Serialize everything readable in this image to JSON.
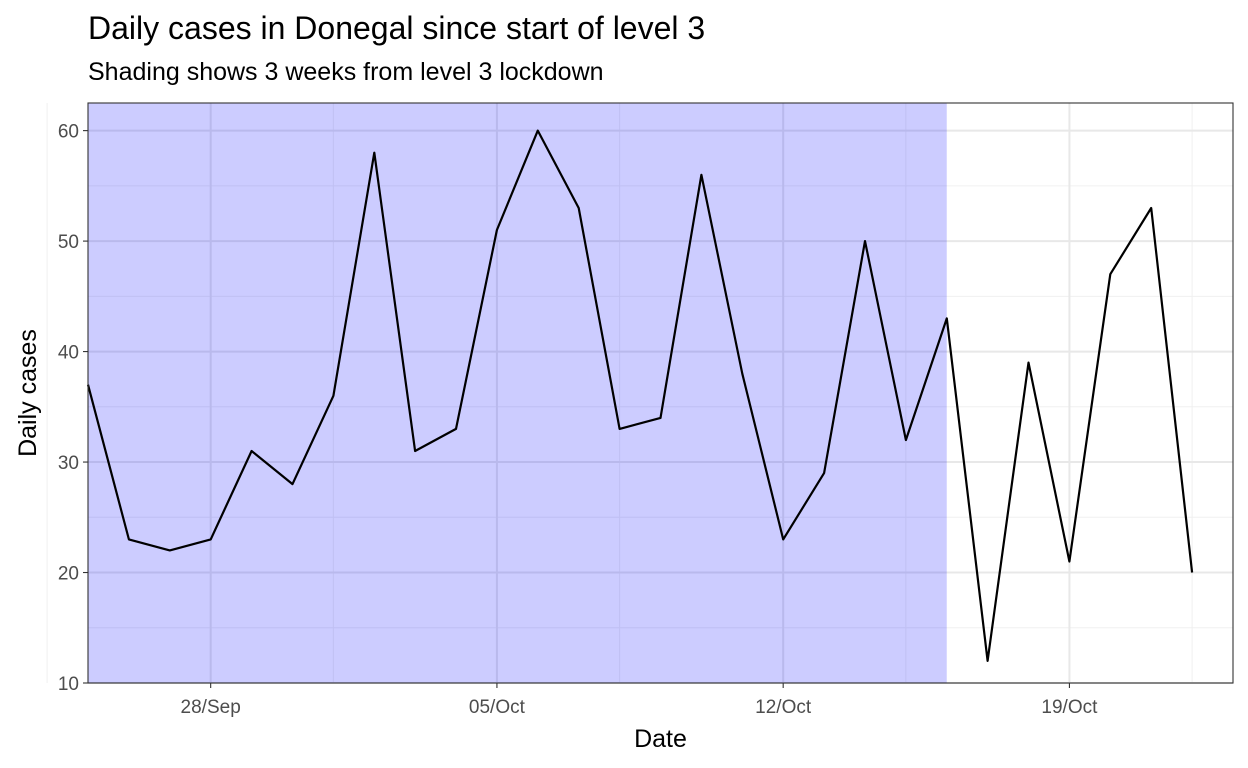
{
  "chart_data": {
    "type": "line",
    "title": "Daily cases in Donegal since start of level 3",
    "subtitle": "Shading shows 3 weeks from level 3 lockdown",
    "xlabel": "Date",
    "ylabel": "Daily cases",
    "x_type": "date",
    "xlim": [
      "2020-09-25",
      "2020-10-23"
    ],
    "ylim": [
      10,
      62.5
    ],
    "x_ticks": [
      "2020-09-28",
      "2020-10-05",
      "2020-10-12",
      "2020-10-19"
    ],
    "x_tick_labels": [
      "28/Sep",
      "05/Oct",
      "12/Oct",
      "19/Oct"
    ],
    "y_ticks": [
      10,
      20,
      30,
      40,
      50,
      60
    ],
    "y_tick_labels": [
      "10",
      "20",
      "30",
      "40",
      "50",
      "60"
    ],
    "grid": true,
    "shading": {
      "from": "2020-09-25",
      "to": "2020-10-16",
      "color": "#ccccff"
    },
    "series": [
      {
        "color": "#000000",
        "x": [
          "2020-09-25",
          "2020-09-26",
          "2020-09-27",
          "2020-09-28",
          "2020-09-29",
          "2020-09-30",
          "2020-10-01",
          "2020-10-02",
          "2020-10-03",
          "2020-10-04",
          "2020-10-05",
          "2020-10-06",
          "2020-10-07",
          "2020-10-08",
          "2020-10-09",
          "2020-10-10",
          "2020-10-11",
          "2020-10-12",
          "2020-10-13",
          "2020-10-14",
          "2020-10-15",
          "2020-10-16",
          "2020-10-17",
          "2020-10-18",
          "2020-10-19",
          "2020-10-20",
          "2020-10-21",
          "2020-10-22"
        ],
        "values": [
          37,
          23,
          22,
          23,
          31,
          28,
          36,
          58,
          31,
          33,
          51,
          60,
          53,
          33,
          34,
          56,
          38,
          23,
          29,
          50,
          32,
          43,
          12,
          39,
          21,
          47,
          53,
          20
        ]
      }
    ]
  }
}
